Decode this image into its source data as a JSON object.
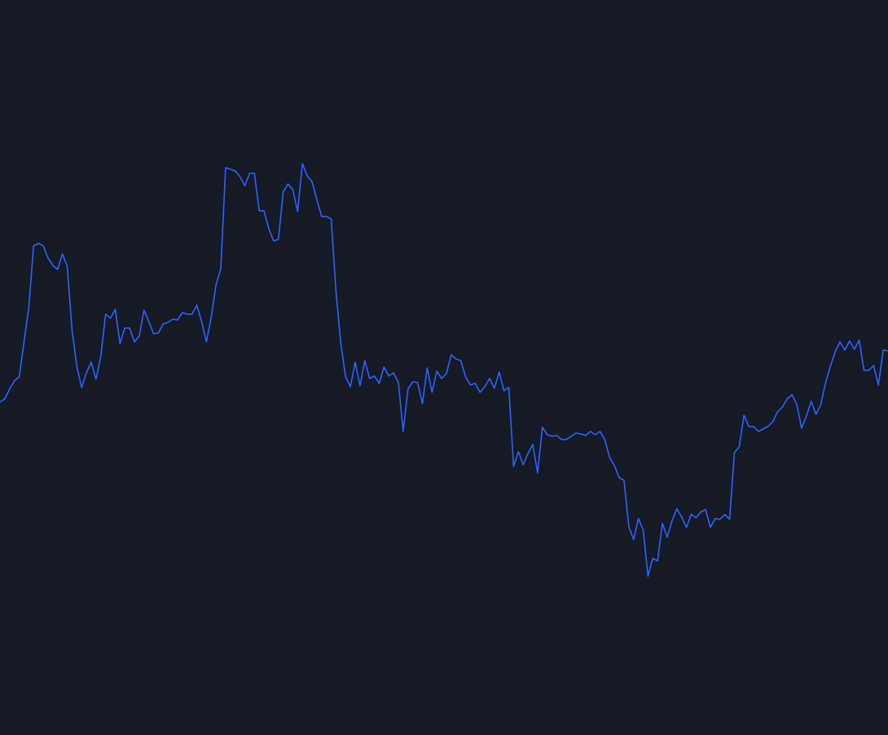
{
  "chart_data": {
    "type": "line",
    "color": "#2962ff",
    "background": "#161a25",
    "ylim": [
      0,
      903
    ],
    "values": [
      409,
      413,
      425,
      435,
      440,
      483,
      525,
      601,
      604,
      601,
      586,
      577,
      572,
      591,
      576,
      498,
      453,
      427,
      445,
      458,
      437,
      465,
      517,
      512,
      523,
      481,
      500,
      500,
      483,
      490,
      522,
      508,
      493,
      494,
      505,
      507,
      511,
      510,
      519,
      517,
      517,
      528,
      508,
      483,
      513,
      553,
      573,
      697,
      695,
      693,
      686,
      675,
      690,
      690,
      644,
      644,
      622,
      607,
      609,
      667,
      677,
      670,
      643,
      702,
      687,
      680,
      658,
      637,
      637,
      634,
      545,
      481,
      440,
      428,
      458,
      429,
      460,
      438,
      441,
      432,
      452,
      441,
      445,
      433,
      373,
      425,
      434,
      433,
      407,
      451,
      421,
      447,
      438,
      444,
      467,
      462,
      460,
      440,
      430,
      432,
      421,
      428,
      438,
      426,
      446,
      423,
      427,
      330,
      348,
      332,
      346,
      357,
      322,
      378,
      369,
      367,
      368,
      363,
      363,
      367,
      371,
      370,
      368,
      373,
      369,
      373,
      363,
      341,
      331,
      316,
      313,
      256,
      240,
      266,
      252,
      195,
      217,
      214,
      260,
      243,
      263,
      278,
      268,
      255,
      271,
      267,
      274,
      277,
      255,
      266,
      265,
      271,
      265,
      347,
      354,
      393,
      379,
      379,
      373,
      376,
      379,
      385,
      397,
      403,
      413,
      418,
      406,
      377,
      392,
      410,
      394,
      406,
      433,
      453,
      471,
      483,
      473,
      484,
      474,
      485,
      448,
      448,
      454,
      430,
      473,
      472
    ]
  }
}
